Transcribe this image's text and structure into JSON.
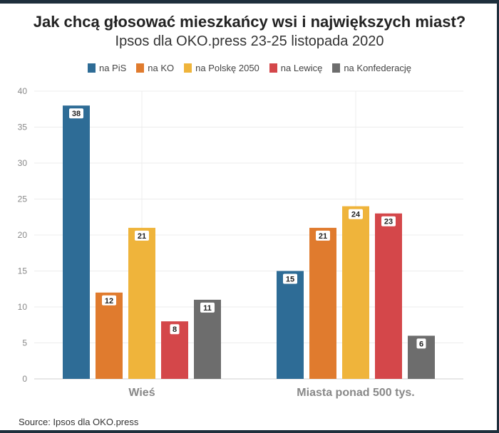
{
  "chart_data": {
    "type": "bar",
    "title": "Jak chcą głosować mieszkańcy wsi i największych miast?",
    "subtitle": "Ipsos dla OKO.press 23-25 listopada 2020",
    "source": "Source: Ipsos dla OKO.press",
    "categories": [
      "Wieś",
      "Miasta ponad 500 tys."
    ],
    "series": [
      {
        "name": "na PiS",
        "color": "#2e6c96",
        "values": [
          38,
          15
        ]
      },
      {
        "name": "na KO",
        "color": "#e07b2e",
        "values": [
          12,
          21
        ]
      },
      {
        "name": "na Polskę 2050",
        "color": "#efb43b",
        "values": [
          21,
          24
        ]
      },
      {
        "name": "na Lewicę",
        "color": "#d4474a",
        "values": [
          8,
          23
        ]
      },
      {
        "name": "na Konfederację",
        "color": "#6d6d6d",
        "values": [
          11,
          6
        ]
      }
    ],
    "ylim": [
      0,
      40
    ],
    "yticks": [
      0,
      5,
      10,
      15,
      20,
      25,
      30,
      35,
      40
    ],
    "grid": true,
    "legend_position": "top"
  }
}
